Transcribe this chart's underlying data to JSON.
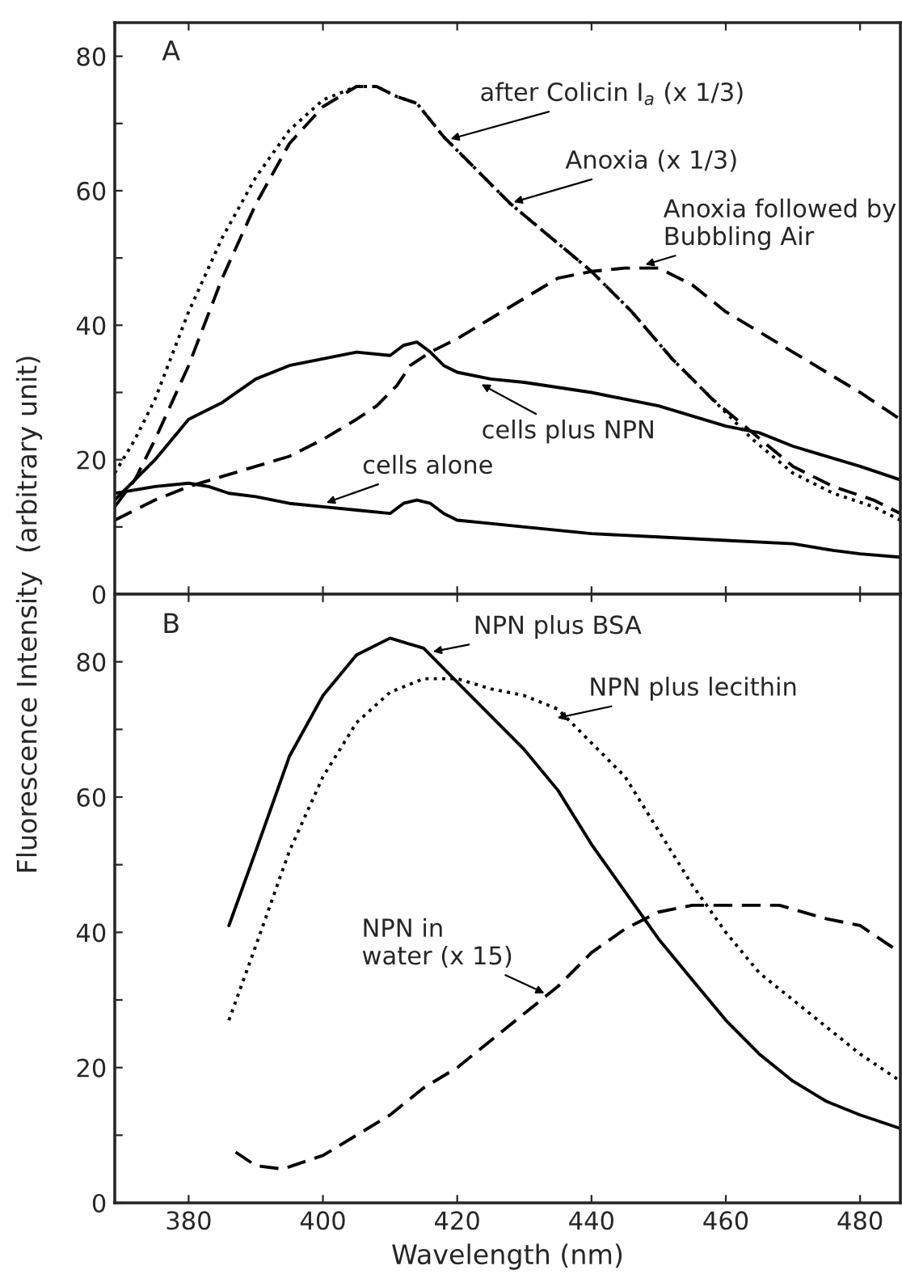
{
  "chart_data": [
    {
      "type": "line",
      "title": "A",
      "ylabel": "Fluorescence Intensity  (arbitrary unit)",
      "xlim": [
        369,
        486
      ],
      "ylim": [
        0,
        85
      ],
      "xticks": [
        380,
        400,
        420,
        440,
        460,
        480
      ],
      "yticks": [
        0,
        {
          "value": 10,
          "label": null
        },
        20,
        {
          "value": 30,
          "label": null
        },
        40,
        {
          "value": 50,
          "label": null
        },
        60,
        {
          "value": 70,
          "label": null
        },
        80
      ],
      "tick_labels": "y",
      "grid": false,
      "legend": false,
      "marker": "none",
      "series": [
        {
          "color": "#000000",
          "line_style": "dotted",
          "x": [
            369,
            372,
            375,
            380,
            385,
            390,
            395,
            400,
            405,
            408,
            411,
            414,
            418,
            422,
            428,
            434,
            440,
            446,
            452,
            458,
            464,
            470,
            476,
            482,
            486
          ],
          "values": [
            18,
            23,
            29,
            42,
            53,
            62,
            69,
            73.5,
            75.5,
            75.5,
            74,
            73,
            68,
            64,
            58,
            53,
            48,
            42,
            35,
            29,
            23,
            18,
            15,
            13,
            11
          ]
        },
        {
          "color": "#000000",
          "line_style": "dashed",
          "x": [
            369,
            372,
            375,
            380,
            385,
            390,
            395,
            400,
            405,
            408,
            411,
            414,
            418,
            422,
            428,
            434,
            440,
            446,
            452,
            458,
            464,
            470,
            476,
            482,
            486
          ],
          "values": [
            13,
            17,
            23,
            34,
            47,
            58,
            67,
            72.5,
            75.5,
            75.5,
            74,
            73,
            68,
            64,
            58,
            53,
            48,
            42,
            35,
            29,
            24,
            19,
            16,
            14,
            12
          ]
        },
        {
          "color": "#000000",
          "line_style": "dashed",
          "x": [
            369,
            375,
            380,
            385,
            390,
            395,
            400,
            405,
            408,
            411,
            413,
            416,
            420,
            425,
            430,
            435,
            440,
            445,
            450,
            455,
            460,
            465,
            470,
            475,
            480,
            486
          ],
          "values": [
            11,
            14,
            16,
            17.5,
            19,
            20.5,
            23,
            26,
            28,
            31,
            34,
            36,
            38,
            41,
            44,
            47,
            48,
            48.5,
            48.5,
            46,
            42,
            39,
            36,
            33,
            30,
            26
          ]
        },
        {
          "color": "#000000",
          "line_style": "solid",
          "x": [
            369,
            372,
            375,
            380,
            385,
            390,
            395,
            400,
            405,
            410,
            412,
            414,
            416,
            418,
            420,
            425,
            430,
            440,
            450,
            455,
            460,
            465,
            470,
            480,
            486
          ],
          "values": [
            14,
            17,
            20,
            26,
            28.5,
            32,
            34,
            35,
            36,
            35.5,
            37,
            37.5,
            36,
            34,
            33,
            32,
            31.5,
            30,
            28,
            26.5,
            25,
            24,
            22,
            19,
            17
          ]
        },
        {
          "color": "#000000",
          "line_style": "solid",
          "x": [
            369,
            375,
            380,
            383,
            386,
            390,
            395,
            400,
            405,
            410,
            412,
            414,
            416,
            418,
            420,
            425,
            430,
            440,
            450,
            460,
            470,
            476,
            480,
            486
          ],
          "values": [
            15,
            16,
            16.5,
            16,
            15,
            14.5,
            13.5,
            13,
            12.5,
            12,
            13.5,
            14,
            13.5,
            12,
            11,
            10.5,
            10,
            9,
            8.5,
            8,
            7.5,
            6.5,
            6,
            5.5
          ]
        }
      ],
      "annotations": [
        {
          "text": "after Colicin I$_{a}$ (x 1/3)",
          "x": 419,
          "y": 67.7
        },
        {
          "text": "Anoxia (x 1/3)",
          "x": 428.4,
          "y": 58.3
        },
        {
          "text": "Anoxia followed by\nBubbling Air",
          "x": 448,
          "y": 49
        },
        {
          "text": "cells plus NPN",
          "x": 423.6,
          "y": 31.2
        },
        {
          "text": "cells alone",
          "x": 400.5,
          "y": 13.6
        }
      ]
    },
    {
      "type": "line",
      "title": "B",
      "xlabel": "Wavelength (nm)",
      "xlim": [
        369,
        486
      ],
      "ylim": [
        0,
        90
      ],
      "xticks": [
        380,
        400,
        420,
        440,
        460,
        480
      ],
      "yticks": [
        0,
        {
          "value": 10,
          "label": null
        },
        20,
        {
          "value": 30,
          "label": null
        },
        40,
        {
          "value": 50,
          "label": null
        },
        60,
        {
          "value": 70,
          "label": null
        },
        80
      ],
      "grid": false,
      "legend": false,
      "marker": "none",
      "series": [
        {
          "color": "#000000",
          "line_style": "solid",
          "x": [
            386,
            390,
            395,
            400,
            405,
            410,
            415,
            420,
            425,
            430,
            435,
            440,
            445,
            450,
            455,
            460,
            465,
            470,
            475,
            480,
            486
          ],
          "values": [
            41,
            52,
            66,
            75,
            81,
            83.5,
            82,
            77,
            72,
            67,
            61,
            53,
            46,
            39,
            33,
            27,
            22,
            18,
            15,
            13,
            11
          ]
        },
        {
          "color": "#000000",
          "line_style": "dotted",
          "x": [
            386,
            390,
            395,
            400,
            405,
            410,
            415,
            420,
            425,
            430,
            435,
            440,
            445,
            450,
            455,
            460,
            465,
            470,
            475,
            480,
            486
          ],
          "values": [
            27,
            38,
            52,
            63,
            71,
            75.5,
            77.5,
            77.5,
            76,
            75,
            73,
            68,
            63,
            55,
            47,
            40,
            34,
            30,
            26,
            22,
            18
          ]
        },
        {
          "color": "#000000",
          "line_style": "dashed",
          "x": [
            387,
            390,
            394,
            400,
            405,
            410,
            415,
            420,
            425,
            430,
            435,
            440,
            445,
            450,
            455,
            460,
            468,
            475,
            480,
            486
          ],
          "values": [
            7.5,
            5.5,
            5,
            7,
            10,
            13,
            17,
            20,
            24,
            28,
            32,
            37,
            40.5,
            43,
            44,
            44,
            44,
            42,
            41,
            37
          ]
        }
      ],
      "annotations": [
        {
          "text": "NPN plus BSA",
          "x": 416.4,
          "y": 81.5
        },
        {
          "text": "NPN plus lecithin",
          "x": 434.9,
          "y": 71.7
        },
        {
          "text": "NPN in\nwater (x 15)",
          "x": 433,
          "y": 31
        }
      ]
    }
  ]
}
